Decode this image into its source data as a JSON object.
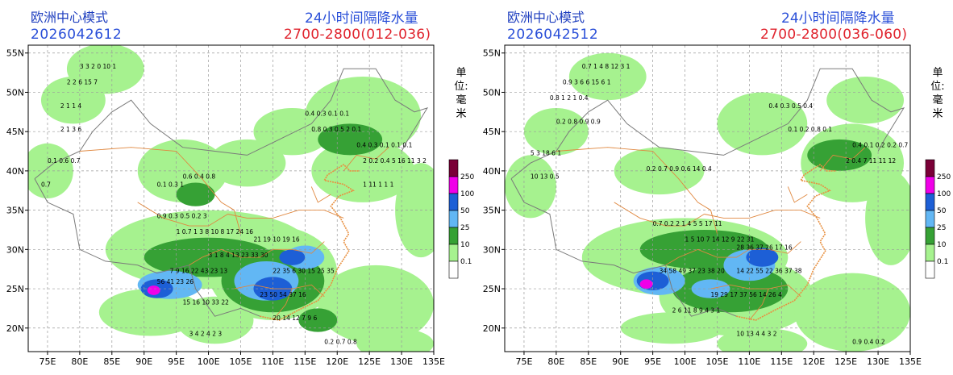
{
  "panels": [
    {
      "model": "欧洲中心模式",
      "init_time": "2026042612",
      "title": "24小时间隔降水量",
      "range": "2700-2800(012-036)",
      "unit": "单位:毫米"
    },
    {
      "model": "欧洲中心模式",
      "init_time": "2026042512",
      "title": "24小时间隔降水量",
      "range": "2700-2800(036-060)",
      "unit": "单位:毫米"
    }
  ],
  "axes": {
    "lat_labels": [
      "55N",
      "50N",
      "45N",
      "40N",
      "35N",
      "30N",
      "25N",
      "20N"
    ],
    "lon_labels": [
      "75E",
      "80E",
      "85E",
      "90E",
      "95E",
      "100E",
      "105E",
      "110E",
      "115E",
      "120E",
      "125E",
      "130E",
      "135E"
    ]
  },
  "legend": {
    "labels": [
      "250",
      "100",
      "50",
      "25",
      "10",
      "0.1"
    ],
    "colors": {
      "gt250": "#7a0037",
      "100_250": "#f000e8",
      "50_100": "#1d5fd6",
      "25_50": "#62b7f4",
      "10_25": "#36a135",
      "0_1_10": "#a6f28f",
      "lt0_1": "#ffffff"
    }
  },
  "colors": {
    "grid": "#9a9a9a",
    "border_province": "#e08840",
    "border_country": "#7a7a7a",
    "title_blue": "#2a4fd8",
    "title_red": "#e0242e"
  }
}
